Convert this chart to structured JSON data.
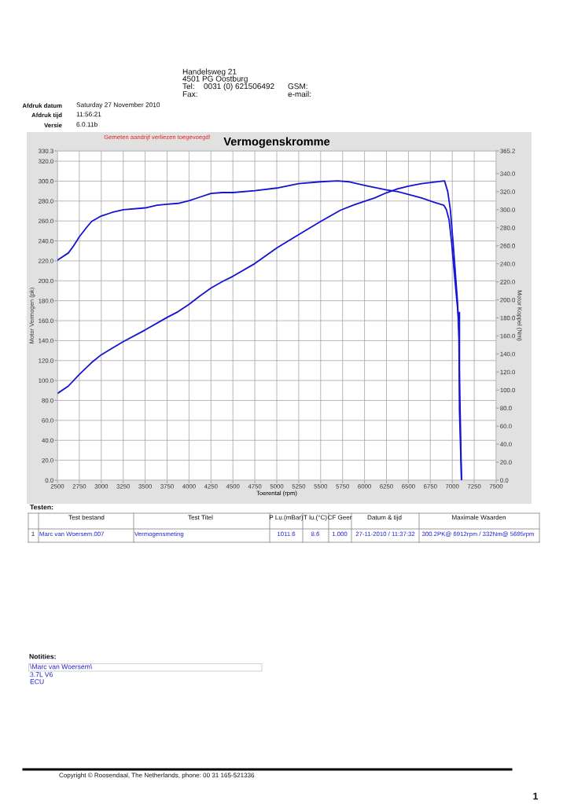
{
  "chart_data": {
    "type": "line",
    "title": "Vermogenskromme",
    "xlabel": "Toerental (rpm)",
    "ylabel": "Motor Vermogen (pk)",
    "y2label": "Motor Koppel (Nm)",
    "series": [
      {
        "color": "#1414d2",
        "x": [
          2500,
          2625,
          2750,
          2890,
          3000,
          3125,
          3250,
          3500,
          3750,
          3875,
          4000,
          4125,
          4250,
          4380,
          4500,
          4750,
          5000,
          5250,
          5500,
          5725,
          5875,
          6000,
          6115,
          6250,
          6380,
          6500,
          6650,
          6800,
          6912,
          6948,
          6978,
          7008,
          7037,
          7061,
          7076,
          7082,
          7105
        ],
        "values": [
          87.0,
          94.4,
          106.2,
          118.0,
          125.8,
          132.4,
          138.9,
          150.7,
          163.3,
          169.0,
          176.4,
          184.8,
          192.7,
          199.2,
          204.5,
          217.3,
          233.0,
          246.4,
          259.5,
          270.8,
          276.0,
          279.7,
          283.1,
          288.3,
          292.3,
          294.9,
          297.5,
          299.1,
          300.2,
          289.6,
          271.3,
          239.8,
          205.8,
          176.9,
          140.2,
          69.5,
          0.0
        ]
      },
      {
        "color": "#1414d2",
        "axis": "y2",
        "x": [
          2500,
          2625,
          2685,
          2750,
          2830,
          2890,
          3000,
          3125,
          3250,
          3500,
          3635,
          3750,
          3875,
          4000,
          4125,
          4250,
          4380,
          4500,
          4750,
          5000,
          5250,
          5500,
          5695,
          5815,
          6000,
          6250,
          6380,
          6500,
          6650,
          6800,
          6903,
          6933,
          6963,
          6993,
          7022,
          7052,
          7073,
          7082,
          7082,
          7088,
          7105
        ],
        "values": [
          244,
          252,
          260,
          270,
          280,
          287,
          293,
          297,
          300,
          302,
          305,
          306,
          307,
          310,
          314,
          318,
          319,
          319,
          321,
          324,
          329,
          331,
          332,
          331,
          327,
          322,
          320,
          317,
          313,
          308,
          305,
          300,
          289,
          263,
          231,
          199,
          178,
          186,
          123,
          85,
          0
        ]
      }
    ],
    "xlim": [
      2500,
      7500
    ],
    "xticks": [
      2500,
      2750,
      3000,
      3250,
      3500,
      3750,
      4000,
      4250,
      4500,
      4750,
      5000,
      5250,
      5500,
      5750,
      6000,
      6250,
      6500,
      6750,
      7000,
      7250,
      7500
    ],
    "ylim": [
      0,
      330.3
    ],
    "yticks": [
      {
        "value": 0,
        "label": "0.0"
      },
      {
        "value": 20,
        "label": "20.0"
      },
      {
        "value": 40,
        "label": "40.0"
      },
      {
        "value": 60,
        "label": "60.0"
      },
      {
        "value": 80,
        "label": "80.0"
      },
      {
        "value": 100,
        "label": "100.0"
      },
      {
        "value": 120,
        "label": "120.0"
      },
      {
        "value": 140,
        "label": "140.0"
      },
      {
        "value": 160,
        "label": "160.0"
      },
      {
        "value": 180,
        "label": "180.0"
      },
      {
        "value": 200,
        "label": "200.0"
      },
      {
        "value": 220,
        "label": "220.0"
      },
      {
        "value": 240,
        "label": "240.0"
      },
      {
        "value": 260,
        "label": "260.0"
      },
      {
        "value": 280,
        "label": "280.0"
      },
      {
        "value": 300,
        "label": "300.0"
      },
      {
        "value": 320,
        "label": "320.0"
      },
      330.3
    ],
    "y2lim": [
      0,
      365.2
    ],
    "y2ticks": [
      {
        "value": 0,
        "label": "0.0"
      },
      {
        "value": 20,
        "label": "20.0"
      },
      {
        "value": 40,
        "label": "40.0"
      },
      {
        "value": 60,
        "label": "60.0"
      },
      {
        "value": 80,
        "label": "80.0"
      },
      {
        "value": 100,
        "label": "100.0"
      },
      {
        "value": 120,
        "label": "120.0"
      },
      {
        "value": 140,
        "label": "140.0"
      },
      {
        "value": 160,
        "label": "160.0"
      },
      {
        "value": 180,
        "label": "180.0"
      },
      {
        "value": 200,
        "label": "200.0"
      },
      {
        "value": 220,
        "label": "220.0"
      },
      {
        "value": 240,
        "label": "240.0"
      },
      {
        "value": 260,
        "label": "260.0"
      },
      {
        "value": 280,
        "label": "280.0"
      },
      {
        "value": 300,
        "label": "300.0"
      },
      {
        "value": 320,
        "label": "320.0"
      },
      {
        "value": 340,
        "label": "340.0"
      },
      365.2
    ],
    "grid": true,
    "annotations": [
      "Gemeten aandrijf verliezen toegevoegd!",
      "Handelsweg 21",
      "4501 PG Oostburg",
      "Tel:",
      "0031 (0) 621506492",
      "GSM:",
      "Fax:",
      "e-mail:",
      "Afdruk datum",
      "Saturday 27 November 2010",
      "Afdruk tijd",
      "11:56:21",
      "Versie",
      "6.0.11b",
      "Testen:",
      "Test bestand",
      "Test Titel",
      "P Lu.(mBar)",
      "T lu.(°C)",
      "CF Geer",
      "Datum & tijd",
      "Maximale Waarden",
      "1",
      "Marc van Woersem.007",
      "Vermogensmeting",
      "1011.6",
      "8.6",
      "1.000",
      "27-11-2010 / 11:37:32",
      "300.2PK@ 6912rpm / 332Nm@ 5695rpm",
      "Notities:",
      "\\Marc van Woersem\\",
      "3.7L V6",
      "ECU",
      "Copyright © Roosendaal, The Netherlands, phone: 00 31 165-521336",
      "1"
    ]
  }
}
